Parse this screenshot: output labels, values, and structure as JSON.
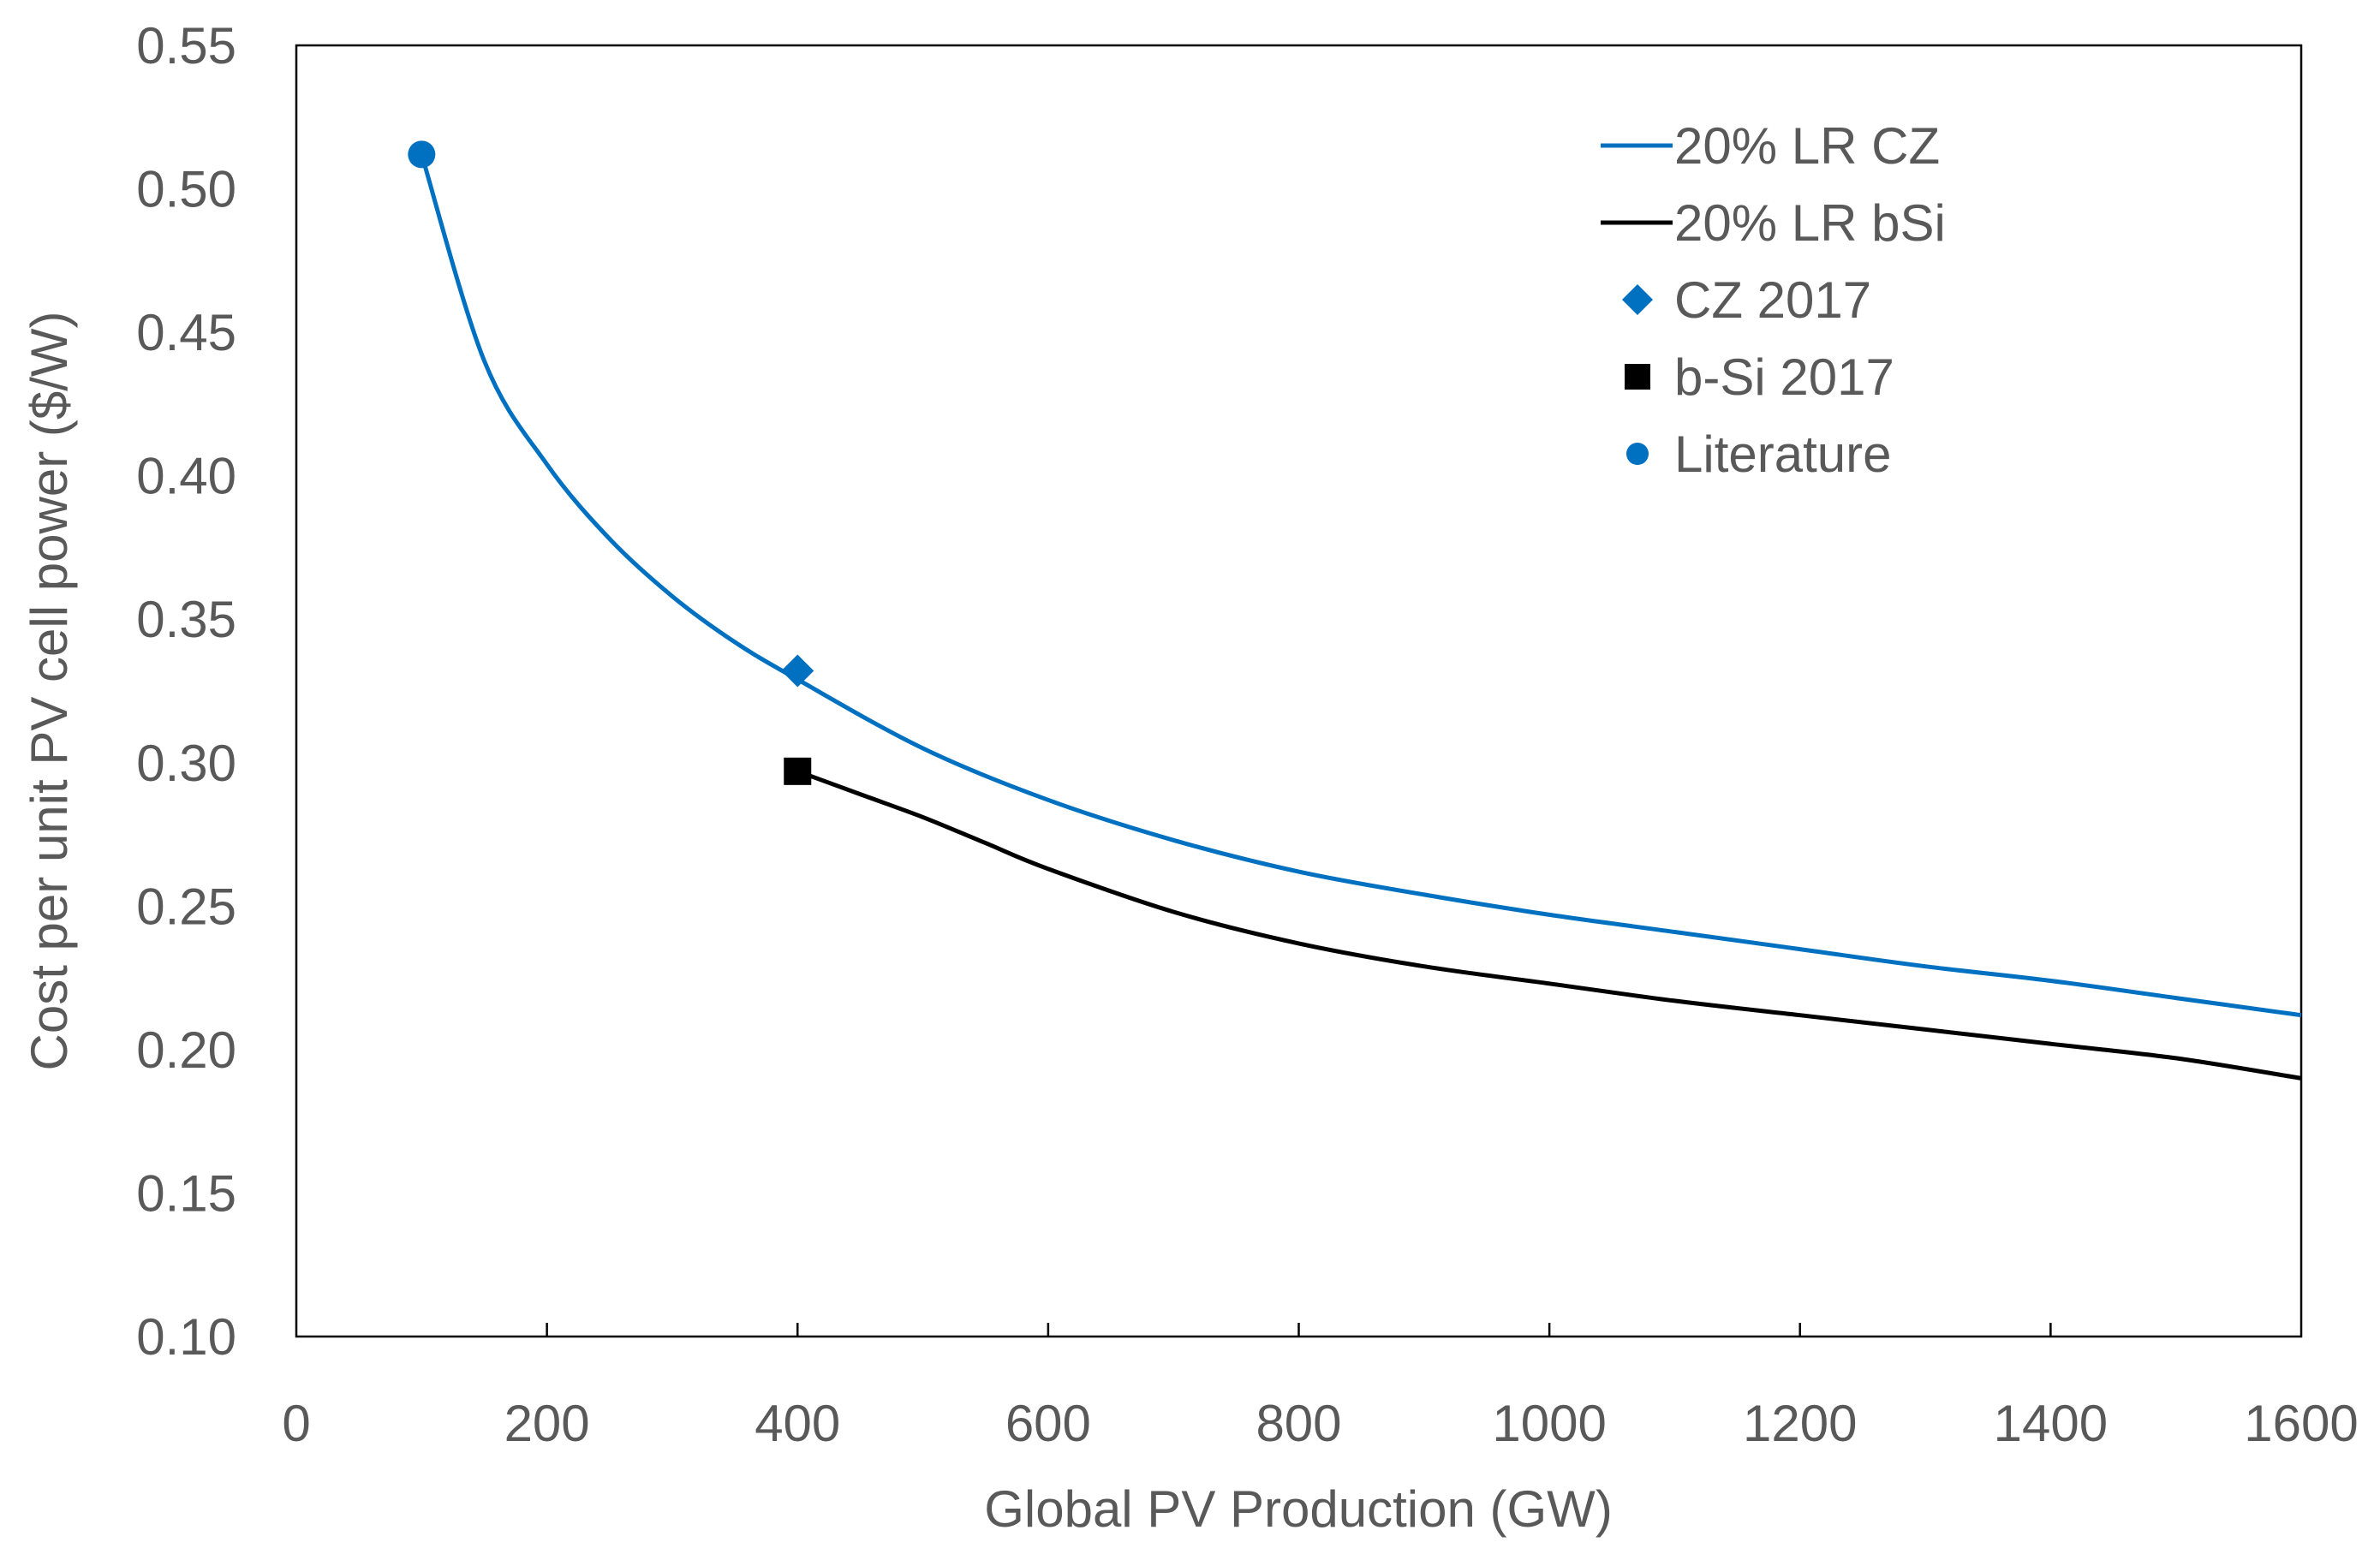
{
  "chart_data": {
    "type": "line",
    "title": "",
    "xlabel": "Global PV Production (GW)",
    "ylabel": "Cost per unit PV cell power ($/W)",
    "xlim": [
      0,
      1600
    ],
    "ylim": [
      0.1,
      0.55
    ],
    "xticks": [
      0,
      200,
      400,
      600,
      800,
      1000,
      1200,
      1400,
      1600
    ],
    "yticks": [
      0.1,
      0.15,
      0.2,
      0.25,
      0.3,
      0.35,
      0.4,
      0.45,
      0.5,
      0.55
    ],
    "xtick_labels": [
      "0",
      "200",
      "400",
      "600",
      "800",
      "1000",
      "1200",
      "1400",
      "1600"
    ],
    "ytick_labels": [
      "0.10",
      "0.15",
      "0.20",
      "0.25",
      "0.30",
      "0.35",
      "0.40",
      "0.45",
      "0.50",
      "0.55"
    ],
    "grid": false,
    "legend_position": "top-right",
    "series": [
      {
        "name": "20% LR CZ",
        "kind": "line",
        "color": "#0070C0",
        "x": [
          100,
          150,
          200,
          250,
          300,
          350,
          400,
          500,
          600,
          700,
          800,
          900,
          1000,
          1100,
          1200,
          1300,
          1400,
          1500,
          1600
        ],
        "y": [
          0.512,
          0.44,
          0.404,
          0.378,
          0.358,
          0.342,
          0.329,
          0.305,
          0.287,
          0.273,
          0.262,
          0.254,
          0.247,
          0.241,
          0.235,
          0.229,
          0.224,
          0.218,
          0.212
        ]
      },
      {
        "name": "20% LR bSi",
        "kind": "line",
        "color": "#000000",
        "x": [
          400,
          450,
          500,
          550,
          600,
          700,
          800,
          900,
          1000,
          1100,
          1200,
          1300,
          1400,
          1500,
          1600
        ],
        "y": [
          0.297,
          0.289,
          0.281,
          0.272,
          0.263,
          0.248,
          0.237,
          0.229,
          0.223,
          0.217,
          0.212,
          0.207,
          0.202,
          0.197,
          0.19
        ]
      },
      {
        "name": "CZ 2017",
        "kind": "marker",
        "marker": "diamond",
        "color": "#0070C0",
        "x": [
          400
        ],
        "y": [
          0.332
        ]
      },
      {
        "name": "b-Si 2017",
        "kind": "marker",
        "marker": "square",
        "color": "#000000",
        "x": [
          400
        ],
        "y": [
          0.297
        ]
      },
      {
        "name": "Literature",
        "kind": "marker",
        "marker": "circle",
        "color": "#0070C0",
        "x": [
          100
        ],
        "y": [
          0.512
        ]
      }
    ]
  }
}
